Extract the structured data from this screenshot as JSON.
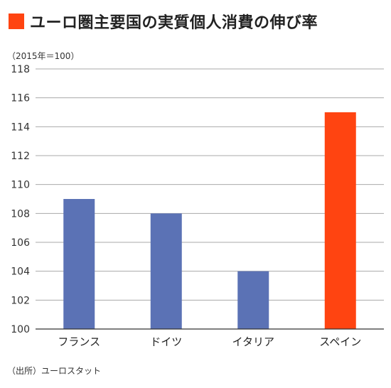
{
  "title": "ユーロ圏主要国の実質個人消費の伸び率",
  "unit_note": "（2015年＝100）",
  "source": "（出所）ユーロスタット",
  "colors": {
    "accent": "#ff4411",
    "bar": "#5b72b5",
    "highlight": "#ff4411",
    "grid": "#aaaaaa",
    "axis": "#333333"
  },
  "chart_data": {
    "type": "bar",
    "title": "ユーロ圏主要国の実質個人消費の伸び率",
    "xlabel": "",
    "ylabel": "（2015年＝100）",
    "ylim": [
      100,
      118
    ],
    "yticks": [
      100,
      102,
      104,
      106,
      108,
      110,
      112,
      114,
      116,
      118
    ],
    "grid": true,
    "categories": [
      "フランス",
      "ドイツ",
      "イタリア",
      "スペイン"
    ],
    "values": [
      109,
      108,
      104,
      115
    ],
    "highlight_index": 3
  }
}
